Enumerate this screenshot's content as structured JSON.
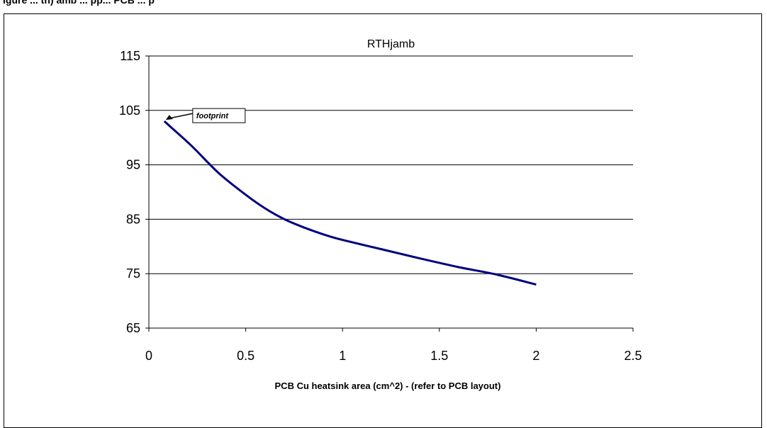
{
  "caption": "igure ... th) amb ... pp... PCB ... p",
  "chart_data": {
    "type": "line",
    "title": "RTHjamb",
    "xlabel": "PCB Cu heatsink area (cm^2) -  (refer to PCB layout)",
    "ylabel": "",
    "xlim": [
      0,
      2.5
    ],
    "ylim": [
      65,
      115
    ],
    "x_ticks": [
      "0",
      "0.5",
      "1",
      "1.5",
      "2",
      "2.5"
    ],
    "y_ticks": [
      "115",
      "105",
      "95",
      "85",
      "75",
      "65"
    ],
    "grid": "horizontal",
    "legend": "none",
    "series": [
      {
        "color": "#000080",
        "x": [
          0.08,
          0.22,
          0.36,
          0.5,
          0.6,
          0.7,
          0.8,
          0.92,
          1.0,
          1.2,
          1.4,
          1.6,
          1.8,
          2.0
        ],
        "y": [
          103,
          98.5,
          93.5,
          89.5,
          87,
          85,
          83.5,
          82,
          81.2,
          79.5,
          77.8,
          76.2,
          74.8,
          73
        ]
      }
    ],
    "annotations": [
      {
        "text": "footprint",
        "x": 0.08,
        "y": 103
      }
    ]
  }
}
